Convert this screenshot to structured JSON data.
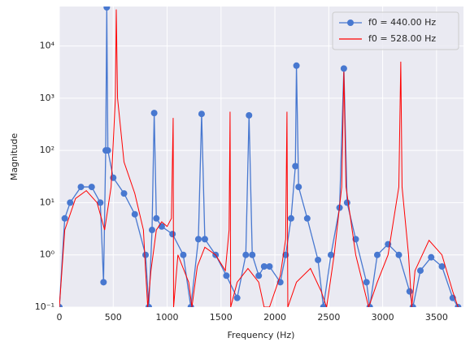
{
  "chart_data": {
    "type": "line",
    "xlabel": "Frequency (Hz)",
    "ylabel": "Magnitude",
    "xlim": [
      0,
      3750
    ],
    "xticks": [
      0,
      500,
      1000,
      1500,
      2000,
      2500,
      3000,
      3500
    ],
    "ylim": [
      0.1,
      57000
    ],
    "log_y": true,
    "yticks": [
      {
        "value": 0.1,
        "label": "10⁻¹"
      },
      {
        "value": 1,
        "label": "10⁰"
      },
      {
        "value": 10,
        "label": "10¹"
      },
      {
        "value": 100,
        "label": "10²"
      },
      {
        "value": 1000,
        "label": "10³"
      },
      {
        "value": 10000,
        "label": "10⁴"
      }
    ],
    "grid": true,
    "legend": "upper right",
    "series": [
      {
        "name": "f0 = 440.00 Hz",
        "color": "#4878d0",
        "marker": true,
        "x": [
          0,
          50,
          100,
          200,
          300,
          380,
          410,
          430,
          440,
          450,
          500,
          600,
          700,
          800,
          830,
          860,
          880,
          900,
          950,
          1050,
          1150,
          1220,
          1290,
          1320,
          1350,
          1450,
          1550,
          1650,
          1730,
          1760,
          1790,
          1850,
          1900,
          1950,
          2050,
          2100,
          2150,
          2190,
          2200,
          2220,
          2300,
          2400,
          2450,
          2520,
          2600,
          2640,
          2670,
          2750,
          2850,
          2880,
          2950,
          3050,
          3150,
          3250,
          3280,
          3350,
          3450,
          3550,
          3650,
          3700
        ],
        "values": [
          0.1,
          5,
          10,
          20,
          20,
          10,
          0.3,
          100,
          55000,
          100,
          30,
          15,
          6,
          1,
          0.1,
          3,
          520,
          5,
          3.5,
          2.5,
          1,
          0.1,
          2,
          500,
          2,
          1,
          0.4,
          0.15,
          1,
          470,
          1,
          0.4,
          0.6,
          0.6,
          0.3,
          1,
          5,
          50,
          4200,
          20,
          5,
          0.8,
          0.1,
          1,
          8,
          3700,
          10,
          2,
          0.3,
          0.1,
          1,
          1.6,
          1,
          0.2,
          0.1,
          0.5,
          0.9,
          0.6,
          0.15,
          0.1
        ]
      },
      {
        "name": "f0 = 528.00 Hz",
        "color": "#ff0000",
        "marker": false,
        "x": [
          0,
          50,
          150,
          250,
          350,
          420,
          480,
          520,
          528,
          540,
          600,
          700,
          780,
          800,
          820,
          850,
          900,
          950,
          1000,
          1040,
          1056,
          1060,
          1100,
          1200,
          1230,
          1280,
          1350,
          1450,
          1540,
          1575,
          1584,
          1590,
          1650,
          1750,
          1850,
          1900,
          1950,
          2050,
          2100,
          2112,
          2120,
          2200,
          2330,
          2430,
          2480,
          2550,
          2620,
          2640,
          2660,
          2750,
          2870,
          2900,
          2950,
          3050,
          3150,
          3168,
          3180,
          3240,
          3270,
          3300,
          3430,
          3550,
          3650,
          3700
        ],
        "values": [
          0.1,
          3,
          12,
          17,
          10,
          3,
          20,
          1000,
          50000,
          1000,
          60,
          15,
          3,
          0.5,
          0.1,
          0.5,
          3,
          4.3,
          3.5,
          5,
          420,
          0.1,
          1,
          0.3,
          0.1,
          0.6,
          1.4,
          1,
          0.5,
          3,
          550,
          0.1,
          0.3,
          0.55,
          0.3,
          0.1,
          0.1,
          0.4,
          2,
          550,
          0.1,
          0.3,
          0.55,
          0.2,
          0.1,
          1,
          20,
          3200,
          20,
          1,
          0.1,
          0.15,
          0.3,
          1,
          20,
          5000,
          20,
          1,
          0.1,
          0.5,
          1.9,
          1,
          0.2,
          0.1
        ]
      }
    ]
  }
}
